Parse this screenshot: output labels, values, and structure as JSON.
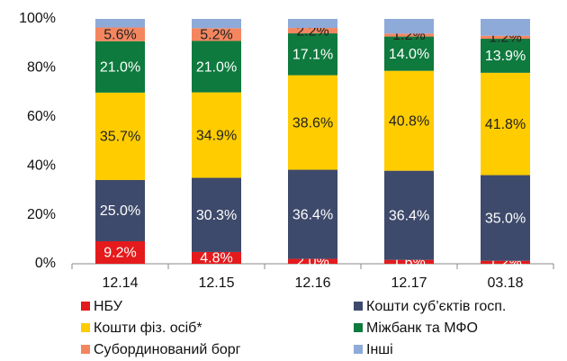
{
  "chart_data": {
    "type": "stacked_bar",
    "categories": [
      "12.14",
      "12.15",
      "12.16",
      "12.17",
      "03.18"
    ],
    "series": [
      {
        "name": "НБУ",
        "color": "#e41a1c",
        "label_color": "#ffffff",
        "values": [
          9.2,
          4.8,
          2.0,
          1.6,
          1.2
        ],
        "value_labels": [
          "9.2%",
          "4.8%",
          "2.0%",
          "1.6%",
          "1.2%"
        ]
      },
      {
        "name": "Кошти суб’єктів госп.",
        "color": "#3e4a6b",
        "label_color": "#ffffff",
        "values": [
          25.0,
          30.3,
          36.4,
          36.4,
          35.0
        ],
        "value_labels": [
          "25.0%",
          "30.3%",
          "36.4%",
          "36.4%",
          "35.0%"
        ]
      },
      {
        "name": "Кошти фіз. осіб*",
        "color": "#ffcc00",
        "label_color": "#222222",
        "values": [
          35.7,
          34.9,
          38.6,
          40.8,
          41.8
        ],
        "value_labels": [
          "35.7%",
          "34.9%",
          "38.6%",
          "40.8%",
          "41.8%"
        ]
      },
      {
        "name": "Міжбанк та МФО",
        "color": "#0e7a3e",
        "label_color": "#ffffff",
        "values": [
          21.0,
          21.0,
          17.1,
          14.0,
          13.9
        ],
        "value_labels": [
          "21.0%",
          "21.0%",
          "17.1%",
          "14.0%",
          "13.9%"
        ]
      },
      {
        "name": "Субординований борг",
        "color": "#f4865f",
        "label_color": "#222222",
        "values": [
          5.6,
          5.2,
          2.2,
          1.2,
          1.2
        ],
        "value_labels": [
          "5.6%",
          "5.2%",
          "2.2%",
          "1.2%",
          "1.2%"
        ]
      },
      {
        "name": "Інші",
        "color": "#8eaad9",
        "values": [
          3.5,
          3.8,
          3.7,
          6.0,
          6.9
        ]
      }
    ],
    "ylim": [
      0,
      100
    ],
    "yticks": [
      {
        "value": 0,
        "label": "0%"
      },
      {
        "value": 20,
        "label": "20%"
      },
      {
        "value": 40,
        "label": "40%"
      },
      {
        "value": 60,
        "label": "60%"
      },
      {
        "value": 80,
        "label": "80%"
      },
      {
        "value": 100,
        "label": "100%"
      }
    ],
    "grid": false
  }
}
